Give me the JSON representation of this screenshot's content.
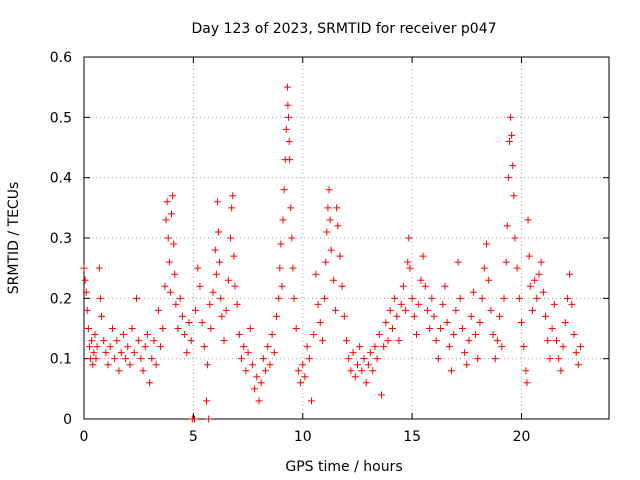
{
  "chart_data": {
    "type": "scatter",
    "title": "Day 123 of 2023, SRMTID for receiver p047",
    "xlabel": "GPS time / hours",
    "ylabel": "SRMTID / TECUs",
    "xlim": [
      0,
      24
    ],
    "ylim": [
      0,
      0.6
    ],
    "xticks": [
      0,
      5,
      10,
      15,
      20
    ],
    "yticks": [
      0,
      0.1,
      0.2,
      0.3,
      0.4,
      0.5,
      0.6
    ],
    "xtick_labels": [
      "0",
      "5",
      "10",
      "15",
      "20"
    ],
    "ytick_labels": [
      "0",
      "0.1",
      "0.2",
      "0.3",
      "0.4",
      "0.5",
      "0.6"
    ],
    "grid": true,
    "marker": "plus",
    "color": "#ff0000",
    "series": [
      {
        "name": "SRMTID",
        "points": [
          [
            0.0,
            0.25
          ],
          [
            0.05,
            0.23
          ],
          [
            0.1,
            0.21
          ],
          [
            0.15,
            0.18
          ],
          [
            0.2,
            0.15
          ],
          [
            0.25,
            0.12
          ],
          [
            0.3,
            0.1
          ],
          [
            0.35,
            0.13
          ],
          [
            0.4,
            0.09
          ],
          [
            0.45,
            0.11
          ],
          [
            0.5,
            0.14
          ],
          [
            0.55,
            0.1
          ],
          [
            0.6,
            0.12
          ],
          [
            0.7,
            0.25
          ],
          [
            0.75,
            0.2
          ],
          [
            0.8,
            0.17
          ],
          [
            0.9,
            0.13
          ],
          [
            1.0,
            0.11
          ],
          [
            1.1,
            0.09
          ],
          [
            1.2,
            0.12
          ],
          [
            1.3,
            0.15
          ],
          [
            1.4,
            0.1
          ],
          [
            1.5,
            0.13
          ],
          [
            1.6,
            0.08
          ],
          [
            1.7,
            0.11
          ],
          [
            1.8,
            0.14
          ],
          [
            1.9,
            0.1
          ],
          [
            2.0,
            0.12
          ],
          [
            2.1,
            0.09
          ],
          [
            2.2,
            0.15
          ],
          [
            2.3,
            0.11
          ],
          [
            2.4,
            0.2
          ],
          [
            2.5,
            0.13
          ],
          [
            2.6,
            0.1
          ],
          [
            2.7,
            0.08
          ],
          [
            2.8,
            0.12
          ],
          [
            2.9,
            0.14
          ],
          [
            3.0,
            0.06
          ],
          [
            3.1,
            0.1
          ],
          [
            3.2,
            0.13
          ],
          [
            3.3,
            0.09
          ],
          [
            3.4,
            0.18
          ],
          [
            3.5,
            0.12
          ],
          [
            3.6,
            0.15
          ],
          [
            3.7,
            0.22
          ],
          [
            3.75,
            0.33
          ],
          [
            3.8,
            0.36
          ],
          [
            3.85,
            0.3
          ],
          [
            3.9,
            0.26
          ],
          [
            3.95,
            0.21
          ],
          [
            4.0,
            0.34
          ],
          [
            4.05,
            0.37
          ],
          [
            4.1,
            0.29
          ],
          [
            4.15,
            0.24
          ],
          [
            4.2,
            0.19
          ],
          [
            4.3,
            0.15
          ],
          [
            4.4,
            0.2
          ],
          [
            4.5,
            0.17
          ],
          [
            4.6,
            0.14
          ],
          [
            4.7,
            0.11
          ],
          [
            4.8,
            0.16
          ],
          [
            4.9,
            0.13
          ],
          [
            4.95,
            0.0
          ],
          [
            5.05,
            0.0
          ],
          [
            5.1,
            0.18
          ],
          [
            5.2,
            0.25
          ],
          [
            5.3,
            0.22
          ],
          [
            5.4,
            0.16
          ],
          [
            5.5,
            0.12
          ],
          [
            5.6,
            0.03
          ],
          [
            5.65,
            0.09
          ],
          [
            5.7,
            0.0
          ],
          [
            5.75,
            0.19
          ],
          [
            5.8,
            0.15
          ],
          [
            5.9,
            0.21
          ],
          [
            6.0,
            0.28
          ],
          [
            6.05,
            0.24
          ],
          [
            6.1,
            0.36
          ],
          [
            6.15,
            0.31
          ],
          [
            6.2,
            0.26
          ],
          [
            6.25,
            0.2
          ],
          [
            6.3,
            0.17
          ],
          [
            6.4,
            0.13
          ],
          [
            6.5,
            0.18
          ],
          [
            6.6,
            0.23
          ],
          [
            6.7,
            0.3
          ],
          [
            6.75,
            0.35
          ],
          [
            6.8,
            0.37
          ],
          [
            6.85,
            0.27
          ],
          [
            6.9,
            0.22
          ],
          [
            7.0,
            0.19
          ],
          [
            7.1,
            0.14
          ],
          [
            7.2,
            0.1
          ],
          [
            7.3,
            0.12
          ],
          [
            7.4,
            0.08
          ],
          [
            7.5,
            0.11
          ],
          [
            7.6,
            0.15
          ],
          [
            7.7,
            0.09
          ],
          [
            7.8,
            0.05
          ],
          [
            7.9,
            0.07
          ],
          [
            8.0,
            0.03
          ],
          [
            8.1,
            0.06
          ],
          [
            8.2,
            0.1
          ],
          [
            8.3,
            0.08
          ],
          [
            8.4,
            0.12
          ],
          [
            8.5,
            0.09
          ],
          [
            8.6,
            0.14
          ],
          [
            8.7,
            0.11
          ],
          [
            8.8,
            0.17
          ],
          [
            8.9,
            0.2
          ],
          [
            8.95,
            0.25
          ],
          [
            9.0,
            0.29
          ],
          [
            9.05,
            0.22
          ],
          [
            9.1,
            0.33
          ],
          [
            9.15,
            0.38
          ],
          [
            9.2,
            0.43
          ],
          [
            9.25,
            0.48
          ],
          [
            9.3,
            0.55
          ],
          [
            9.32,
            0.52
          ],
          [
            9.35,
            0.5
          ],
          [
            9.38,
            0.46
          ],
          [
            9.4,
            0.43
          ],
          [
            9.45,
            0.35
          ],
          [
            9.5,
            0.3
          ],
          [
            9.55,
            0.25
          ],
          [
            9.6,
            0.2
          ],
          [
            9.7,
            0.15
          ],
          [
            9.8,
            0.08
          ],
          [
            9.9,
            0.06
          ],
          [
            10.0,
            0.09
          ],
          [
            10.1,
            0.07
          ],
          [
            10.2,
            0.12
          ],
          [
            10.3,
            0.1
          ],
          [
            10.4,
            0.03
          ],
          [
            10.5,
            0.14
          ],
          [
            10.6,
            0.24
          ],
          [
            10.7,
            0.19
          ],
          [
            10.8,
            0.16
          ],
          [
            10.9,
            0.13
          ],
          [
            11.0,
            0.2
          ],
          [
            11.05,
            0.26
          ],
          [
            11.1,
            0.31
          ],
          [
            11.15,
            0.35
          ],
          [
            11.2,
            0.38
          ],
          [
            11.25,
            0.33
          ],
          [
            11.3,
            0.28
          ],
          [
            11.4,
            0.23
          ],
          [
            11.5,
            0.18
          ],
          [
            11.55,
            0.35
          ],
          [
            11.6,
            0.32
          ],
          [
            11.7,
            0.27
          ],
          [
            11.8,
            0.22
          ],
          [
            11.9,
            0.17
          ],
          [
            12.0,
            0.13
          ],
          [
            12.1,
            0.1
          ],
          [
            12.2,
            0.08
          ],
          [
            12.3,
            0.11
          ],
          [
            12.4,
            0.07
          ],
          [
            12.5,
            0.09
          ],
          [
            12.6,
            0.12
          ],
          [
            12.7,
            0.08
          ],
          [
            12.8,
            0.1
          ],
          [
            12.9,
            0.06
          ],
          [
            13.0,
            0.09
          ],
          [
            13.1,
            0.11
          ],
          [
            13.2,
            0.08
          ],
          [
            13.3,
            0.12
          ],
          [
            13.4,
            0.1
          ],
          [
            13.5,
            0.14
          ],
          [
            13.6,
            0.04
          ],
          [
            13.7,
            0.12
          ],
          [
            13.8,
            0.16
          ],
          [
            13.9,
            0.13
          ],
          [
            14.0,
            0.18
          ],
          [
            14.1,
            0.15
          ],
          [
            14.2,
            0.2
          ],
          [
            14.3,
            0.17
          ],
          [
            14.4,
            0.13
          ],
          [
            14.5,
            0.19
          ],
          [
            14.6,
            0.22
          ],
          [
            14.7,
            0.18
          ],
          [
            14.8,
            0.26
          ],
          [
            14.85,
            0.3
          ],
          [
            14.9,
            0.25
          ],
          [
            15.0,
            0.2
          ],
          [
            15.1,
            0.17
          ],
          [
            15.2,
            0.14
          ],
          [
            15.3,
            0.19
          ],
          [
            15.4,
            0.23
          ],
          [
            15.5,
            0.27
          ],
          [
            15.6,
            0.22
          ],
          [
            15.7,
            0.18
          ],
          [
            15.8,
            0.15
          ],
          [
            15.9,
            0.2
          ],
          [
            16.0,
            0.17
          ],
          [
            16.1,
            0.13
          ],
          [
            16.2,
            0.1
          ],
          [
            16.3,
            0.15
          ],
          [
            16.4,
            0.19
          ],
          [
            16.5,
            0.22
          ],
          [
            16.6,
            0.16
          ],
          [
            16.7,
            0.12
          ],
          [
            16.8,
            0.08
          ],
          [
            16.9,
            0.14
          ],
          [
            17.0,
            0.18
          ],
          [
            17.1,
            0.26
          ],
          [
            17.2,
            0.2
          ],
          [
            17.3,
            0.15
          ],
          [
            17.4,
            0.11
          ],
          [
            17.5,
            0.09
          ],
          [
            17.6,
            0.13
          ],
          [
            17.7,
            0.17
          ],
          [
            17.8,
            0.21
          ],
          [
            17.9,
            0.14
          ],
          [
            18.0,
            0.1
          ],
          [
            18.1,
            0.16
          ],
          [
            18.2,
            0.2
          ],
          [
            18.3,
            0.25
          ],
          [
            18.4,
            0.29
          ],
          [
            18.5,
            0.23
          ],
          [
            18.6,
            0.18
          ],
          [
            18.7,
            0.14
          ],
          [
            18.8,
            0.1
          ],
          [
            18.9,
            0.13
          ],
          [
            19.0,
            0.17
          ],
          [
            19.1,
            0.12
          ],
          [
            19.2,
            0.2
          ],
          [
            19.3,
            0.26
          ],
          [
            19.35,
            0.32
          ],
          [
            19.4,
            0.4
          ],
          [
            19.45,
            0.46
          ],
          [
            19.5,
            0.5
          ],
          [
            19.55,
            0.47
          ],
          [
            19.6,
            0.42
          ],
          [
            19.65,
            0.37
          ],
          [
            19.7,
            0.3
          ],
          [
            19.8,
            0.25
          ],
          [
            19.9,
            0.2
          ],
          [
            20.0,
            0.16
          ],
          [
            20.1,
            0.12
          ],
          [
            20.2,
            0.08
          ],
          [
            20.25,
            0.06
          ],
          [
            20.3,
            0.33
          ],
          [
            20.35,
            0.27
          ],
          [
            20.4,
            0.22
          ],
          [
            20.5,
            0.18
          ],
          [
            20.6,
            0.23
          ],
          [
            20.7,
            0.2
          ],
          [
            20.8,
            0.24
          ],
          [
            20.9,
            0.26
          ],
          [
            21.0,
            0.21
          ],
          [
            21.1,
            0.17
          ],
          [
            21.2,
            0.13
          ],
          [
            21.3,
            0.1
          ],
          [
            21.4,
            0.15
          ],
          [
            21.5,
            0.19
          ],
          [
            21.6,
            0.13
          ],
          [
            21.7,
            0.1
          ],
          [
            21.8,
            0.08
          ],
          [
            21.9,
            0.12
          ],
          [
            22.0,
            0.16
          ],
          [
            22.1,
            0.2
          ],
          [
            22.2,
            0.24
          ],
          [
            22.3,
            0.19
          ],
          [
            22.4,
            0.14
          ],
          [
            22.5,
            0.11
          ],
          [
            22.6,
            0.09
          ],
          [
            22.7,
            0.12
          ]
        ]
      }
    ]
  }
}
